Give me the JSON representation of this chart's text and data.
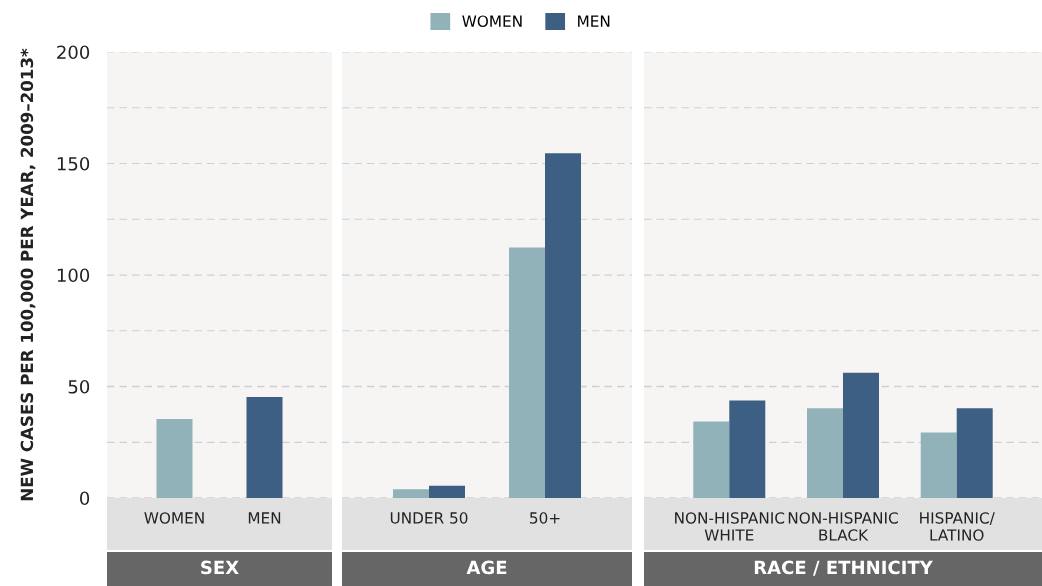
{
  "chart_data": [
    {
      "type": "bar",
      "title": "SEX",
      "ylabel": "NEW CASES PER 100,000 PER YEAR, 2009–2013*",
      "categories": [
        "WOMEN",
        "MEN"
      ],
      "values": [
        35.4,
        45.3
      ],
      "colors": [
        "#91b2b9",
        "#3d5f83"
      ],
      "ylim": [
        0,
        200
      ],
      "yticks": [
        0,
        {
          "value": 25,
          "label": null
        },
        50,
        {
          "value": 75,
          "label": null
        },
        100,
        {
          "value": 125,
          "label": null
        },
        150,
        {
          "value": 175,
          "label": null
        },
        200
      ],
      "grid": "y"
    },
    {
      "type": "bar",
      "title": "AGE",
      "categories": [
        "UNDER 50",
        "50+"
      ],
      "series": [
        {
          "name": "WOMEN",
          "color": "#91b2b9",
          "values": [
            3.9,
            112.3
          ]
        },
        {
          "name": "MEN",
          "color": "#3d5f83",
          "values": [
            5.5,
            154.6
          ]
        }
      ],
      "ylim": [
        0,
        200
      ],
      "yticks": [
        0,
        {
          "value": 25,
          "label": null
        },
        50,
        {
          "value": 75,
          "label": null
        },
        100,
        {
          "value": 125,
          "label": null
        },
        150,
        {
          "value": 175,
          "label": null
        },
        200
      ],
      "grid": "y",
      "legend": "top",
      "tick_labels": "x"
    },
    {
      "type": "bar",
      "title": "RACE / ETHNICITY",
      "categories": [
        "NON-HISPANIC\nWHITE",
        "NON-HISPANIC\nBLACK",
        "HISPANIC/\nLATINO"
      ],
      "series": [
        {
          "color": "#91b2b9",
          "values": [
            34.3,
            40.2,
            29.4
          ]
        },
        {
          "color": "#3d5f83",
          "values": [
            43.7,
            56.2,
            40.2
          ]
        }
      ],
      "ylim": [
        0,
        200
      ],
      "yticks": [
        0,
        {
          "value": 25,
          "label": null
        },
        50,
        {
          "value": 75,
          "label": null
        },
        100,
        {
          "value": 125,
          "label": null
        },
        150,
        {
          "value": 175,
          "label": null
        },
        200
      ],
      "grid": "y",
      "tick_labels": "x"
    }
  ]
}
